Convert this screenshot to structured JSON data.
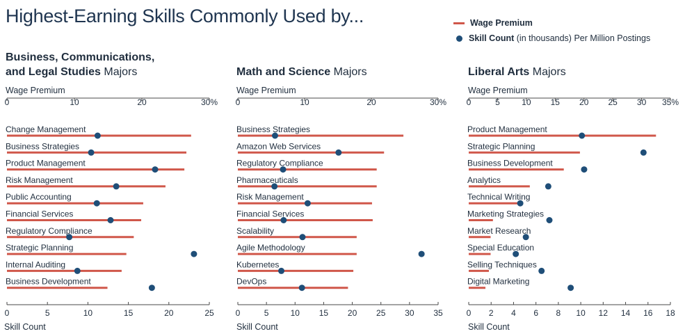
{
  "header": {
    "title": "Highest-Earning Skills Commonly Used by..."
  },
  "legend": {
    "wage_label": "Wage Premium",
    "skill_label_bold": "Skill Count",
    "skill_label_rest": " (in thousands) Per Million Postings"
  },
  "colors": {
    "wage": "#d0574a",
    "skill": "#1f4e78",
    "axis": "#4a4a4a",
    "text": "#1f2d3d"
  },
  "chart_data": [
    {
      "type": "bar",
      "title_bold": "Business, Communications,",
      "title_bold2": "and Legal Studies",
      "title_rest": " Majors",
      "top_axis_label": "Wage Premium",
      "bottom_axis_label": "Skill Count",
      "wage_range": [
        0,
        30
      ],
      "wage_ticks": [
        "0",
        "10",
        "20",
        "30%"
      ],
      "skill_range": [
        0,
        25
      ],
      "skill_ticks": [
        "0",
        "5",
        "10",
        "15",
        "20",
        "25"
      ],
      "categories": [
        "Change Management",
        "Business Strategies",
        "Product Management",
        "Risk Management",
        "Public Accounting",
        "Financial Services",
        "Regulatory Compliance",
        "Strategic Planning",
        "Internal Auditing",
        "Business Development"
      ],
      "series": [
        {
          "name": "Wage Premium",
          "values": [
            27.3,
            26.6,
            26.3,
            23.5,
            20.2,
            19.9,
            18.8,
            17.7,
            17.0,
            14.9
          ]
        },
        {
          "name": "Skill Count",
          "values": [
            11.2,
            10.4,
            18.3,
            13.5,
            11.1,
            12.8,
            7.7,
            23.1,
            8.7,
            17.9
          ]
        }
      ]
    },
    {
      "type": "bar",
      "title_bold": "Math and Science",
      "title_rest": " Majors",
      "top_axis_label": "Wage Premium",
      "bottom_axis_label": "Skill Count",
      "wage_range": [
        0,
        30
      ],
      "wage_ticks": [
        "0",
        "10",
        "20",
        "30%"
      ],
      "skill_range": [
        0,
        35
      ],
      "skill_ticks": [
        "0",
        "5",
        "10",
        "15",
        "20",
        "25",
        "30",
        "35"
      ],
      "categories": [
        "Business Strategies",
        "Amazon Web Services",
        "Regulatory Compliance",
        "Pharmaceuticals",
        "Risk Management",
        "Financial Services",
        "Scalability",
        "Agile Methodology",
        "Kubernetes",
        "DevOps"
      ],
      "series": [
        {
          "name": "Wage Premium",
          "values": [
            24.8,
            21.9,
            20.8,
            20.8,
            20.1,
            20.2,
            17.8,
            17.8,
            17.3,
            16.5
          ]
        },
        {
          "name": "Skill Count",
          "values": [
            6.5,
            17.6,
            7.9,
            6.4,
            12.2,
            8.0,
            11.3,
            32.1,
            7.6,
            11.2
          ]
        }
      ]
    },
    {
      "type": "bar",
      "title_bold": "Liberal Arts",
      "title_rest": " Majors",
      "top_axis_label": "Wage Premium",
      "bottom_axis_label": "Skill Count",
      "wage_range": [
        0,
        35
      ],
      "wage_ticks": [
        "0",
        "5",
        "10",
        "15",
        "20",
        "25",
        "30",
        "35%"
      ],
      "skill_range": [
        0,
        18
      ],
      "skill_ticks": [
        "0",
        "2",
        "4",
        "6",
        "8",
        "10",
        "12",
        "14",
        "16",
        "18"
      ],
      "categories": [
        "Product Management",
        "Strategic Planning",
        "Business Development",
        "Analytics",
        "Technical Writing",
        "Marketing Strategies",
        "Market Research",
        "Special Education",
        "Selling Techniques",
        "Digital Marketing"
      ],
      "series": [
        {
          "name": "Wage Premium",
          "values": [
            32.5,
            19.3,
            16.5,
            10.6,
            9.3,
            4.2,
            3.8,
            3.8,
            3.5,
            2.9
          ]
        },
        {
          "name": "Skill Count",
          "values": [
            10.1,
            15.6,
            10.3,
            7.1,
            4.6,
            7.2,
            5.1,
            4.2,
            6.5,
            9.1
          ]
        }
      ]
    }
  ]
}
